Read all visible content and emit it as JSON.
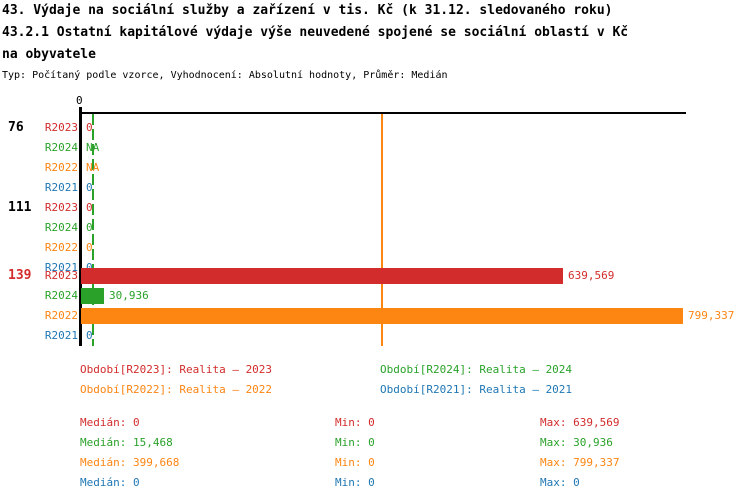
{
  "title": {
    "line1": "43. Výdaje na sociální služby a zařízení v tis. Kč (k 31.12. sledovaného roku)",
    "line2": "43.2.1 Ostatní kapitálové výdaje výše neuvedené spojené se sociální oblastí v Kč",
    "line3": "na obyvatele",
    "meta": "Typ: Počítaný podle vzorce, Vyhodnocení: Absolutní hodnoty, Průměr: Medián"
  },
  "colors": {
    "R2023": "#d32c2c",
    "R2024": "#2aa22a",
    "R2022": "#fd8512",
    "R2021": "#1f77b4",
    "axis": "#000000"
  },
  "chart_data": {
    "type": "bar",
    "orientation": "horizontal",
    "x_axis": {
      "tick_label": "0",
      "min": 0,
      "max": 799337,
      "gridlines": false
    },
    "series": [
      "R2023",
      "R2024",
      "R2022",
      "R2021"
    ],
    "groups": [
      {
        "label": "76",
        "label_color": "#000000",
        "values": [
          0,
          null,
          null,
          0
        ],
        "display": [
          "0",
          "NA",
          "NA",
          "0"
        ]
      },
      {
        "label": "111",
        "label_color": "#000000",
        "values": [
          0,
          0,
          0,
          0
        ],
        "display": [
          "0",
          "0",
          "0",
          "0"
        ]
      },
      {
        "label": "139",
        "label_color": "#d32c2c",
        "values": [
          639569,
          30936,
          799337,
          0
        ],
        "display": [
          "639,569",
          "30,936",
          "799,337",
          "0"
        ]
      }
    ],
    "median_lines": [
      {
        "series": "R2024",
        "value": 15468,
        "style": "dashed"
      },
      {
        "series": "R2022",
        "value": 399668,
        "style": "solid"
      }
    ]
  },
  "legend": {
    "items": [
      {
        "series": "R2023",
        "label": "Období[R2023]: Realita – 2023"
      },
      {
        "series": "R2024",
        "label": "Období[R2024]: Realita – 2024"
      },
      {
        "series": "R2022",
        "label": "Období[R2022]: Realita – 2022"
      },
      {
        "series": "R2021",
        "label": "Období[R2021]: Realita – 2021"
      }
    ]
  },
  "stats": {
    "rows": [
      {
        "series": "R2023",
        "median": "Medián: 0",
        "min": "Min: 0",
        "max": "Max: 639,569"
      },
      {
        "series": "R2024",
        "median": "Medián: 15,468",
        "min": "Min: 0",
        "max": "Max: 30,936"
      },
      {
        "series": "R2022",
        "median": "Medián: 399,668",
        "min": "Min: 0",
        "max": "Max: 799,337"
      },
      {
        "series": "R2021",
        "median": "Medián: 0",
        "min": "Min: 0",
        "max": "Max: 0"
      }
    ]
  }
}
